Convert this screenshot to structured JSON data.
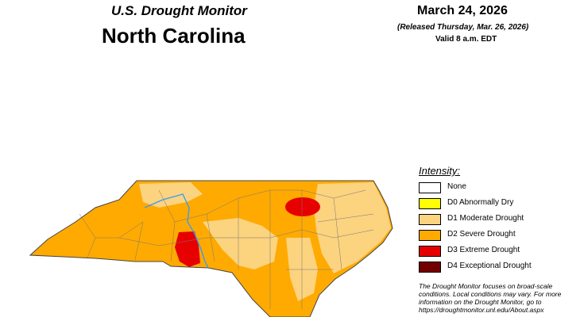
{
  "header": {
    "title": "U.S. Drought Monitor",
    "state": "North Carolina",
    "date": "March 24, 2026",
    "released": "(Released Thursday, Mar. 26, 2026)",
    "valid": "Valid 8 a.m. EDT"
  },
  "legend": {
    "title": "Intensity:",
    "items": [
      {
        "label": "None",
        "color": "#ffffff"
      },
      {
        "label": "D0 Abnormally Dry",
        "color": "#ffff00"
      },
      {
        "label": "D1 Moderate Drought",
        "color": "#fcd37f"
      },
      {
        "label": "D2 Severe Drought",
        "color": "#ffaa00"
      },
      {
        "label": "D3 Extreme Drought",
        "color": "#e60000"
      },
      {
        "label": "D4 Exceptional Drought",
        "color": "#730000"
      }
    ]
  },
  "note": [
    "The Drought Monitor focuses on broad-scale",
    "conditions. Local conditions may vary. For more",
    "information on the Drought Monitor, go to",
    "https://droughtmonitor.unl.edu/About.aspx"
  ]
}
